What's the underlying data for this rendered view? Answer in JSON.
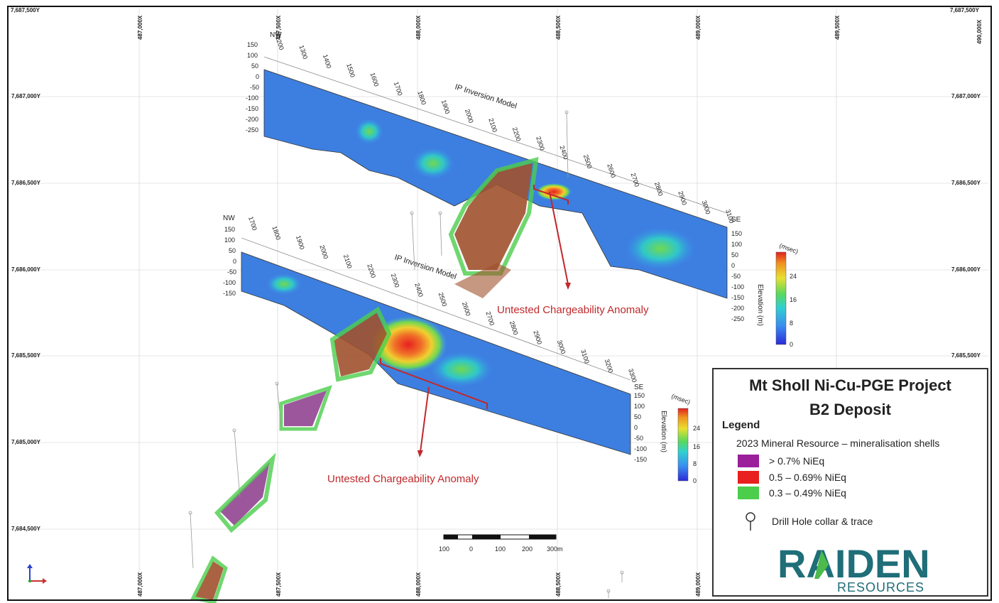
{
  "grid": {
    "top_left_corner": "7,687,500Y",
    "top_right_corner": "7,687,500Y",
    "eastings": [
      "487,000X",
      "487,500X",
      "488,000X",
      "488,500X",
      "489,000X",
      "489,500X",
      "490,000X"
    ],
    "northings": [
      "7,687,000Y",
      "7,686,500Y",
      "7,686,000Y",
      "7,685,500Y",
      "7,685,000Y",
      "7,684,500Y"
    ]
  },
  "upper_section": {
    "title": "IP Inversion Model",
    "start_label": "NW",
    "end_label": "SE",
    "elevations_left": [
      "150",
      "100",
      "50",
      "0",
      "-50",
      "-100",
      "-150",
      "-200",
      "-250"
    ],
    "elevations_right": [
      "150",
      "100",
      "50",
      "0",
      "-50",
      "-100",
      "-150",
      "-200",
      "-250"
    ],
    "distance_ticks": [
      "1200",
      "1300",
      "1400",
      "1500",
      "1600",
      "1700",
      "1800",
      "1900",
      "2000",
      "2100",
      "2200",
      "2300",
      "2400",
      "2500",
      "2600",
      "2700",
      "2800",
      "2900",
      "3000",
      "3100"
    ],
    "elevation_axis_label": "Elevation (m)",
    "colorbar_unit": "(msec)",
    "colorbar_ticks": [
      "24",
      "16",
      "8",
      "0"
    ]
  },
  "lower_section": {
    "title": "IP Inversion Model",
    "start_label": "NW",
    "end_label": "SE",
    "elevations_left": [
      "150",
      "100",
      "50",
      "0",
      "-50",
      "-100",
      "-150"
    ],
    "elevations_right": [
      "150",
      "100",
      "50",
      "0",
      "-50",
      "-100",
      "-150"
    ],
    "distance_ticks": [
      "1700",
      "1800",
      "1900",
      "2000",
      "2100",
      "2200",
      "2300",
      "2400",
      "2500",
      "2600",
      "2700",
      "2800",
      "2900",
      "3000",
      "3100",
      "3200",
      "3300"
    ],
    "elevation_axis_label": "Elevation (m)",
    "colorbar_unit": "(msec)",
    "colorbar_ticks": [
      "24",
      "16",
      "8",
      "0"
    ]
  },
  "annotations": {
    "upper_anomaly": "Untested Chargeability Anomaly",
    "lower_anomaly": "Untested Chargeability Anomaly"
  },
  "scale_bar": {
    "labels": [
      "100",
      "0",
      "100",
      "200",
      "300m"
    ]
  },
  "legend": {
    "title_line1": "Mt Sholl Ni-Cu-PGE Project",
    "title_line2": "B2 Deposit",
    "heading": "Legend",
    "subheading": "2023 Mineral Resource – mineralisation shells",
    "items": [
      {
        "label": "> 0.7% NiEq",
        "color": "#9b1f9b"
      },
      {
        "label": "0.5 – 0.69% NiEq",
        "color": "#e8201f"
      },
      {
        "label": "0.3 – 0.49% NiEq",
        "color": "#4ccd4c"
      }
    ],
    "drill_label": "Drill Hole collar & trace",
    "logo_main": "RAIDEN",
    "logo_sub": "RESOURCES"
  },
  "colors": {
    "anomaly_red": "#c0282b",
    "logo_teal": "#1f6e78",
    "logo_green": "#4cbb4c"
  }
}
